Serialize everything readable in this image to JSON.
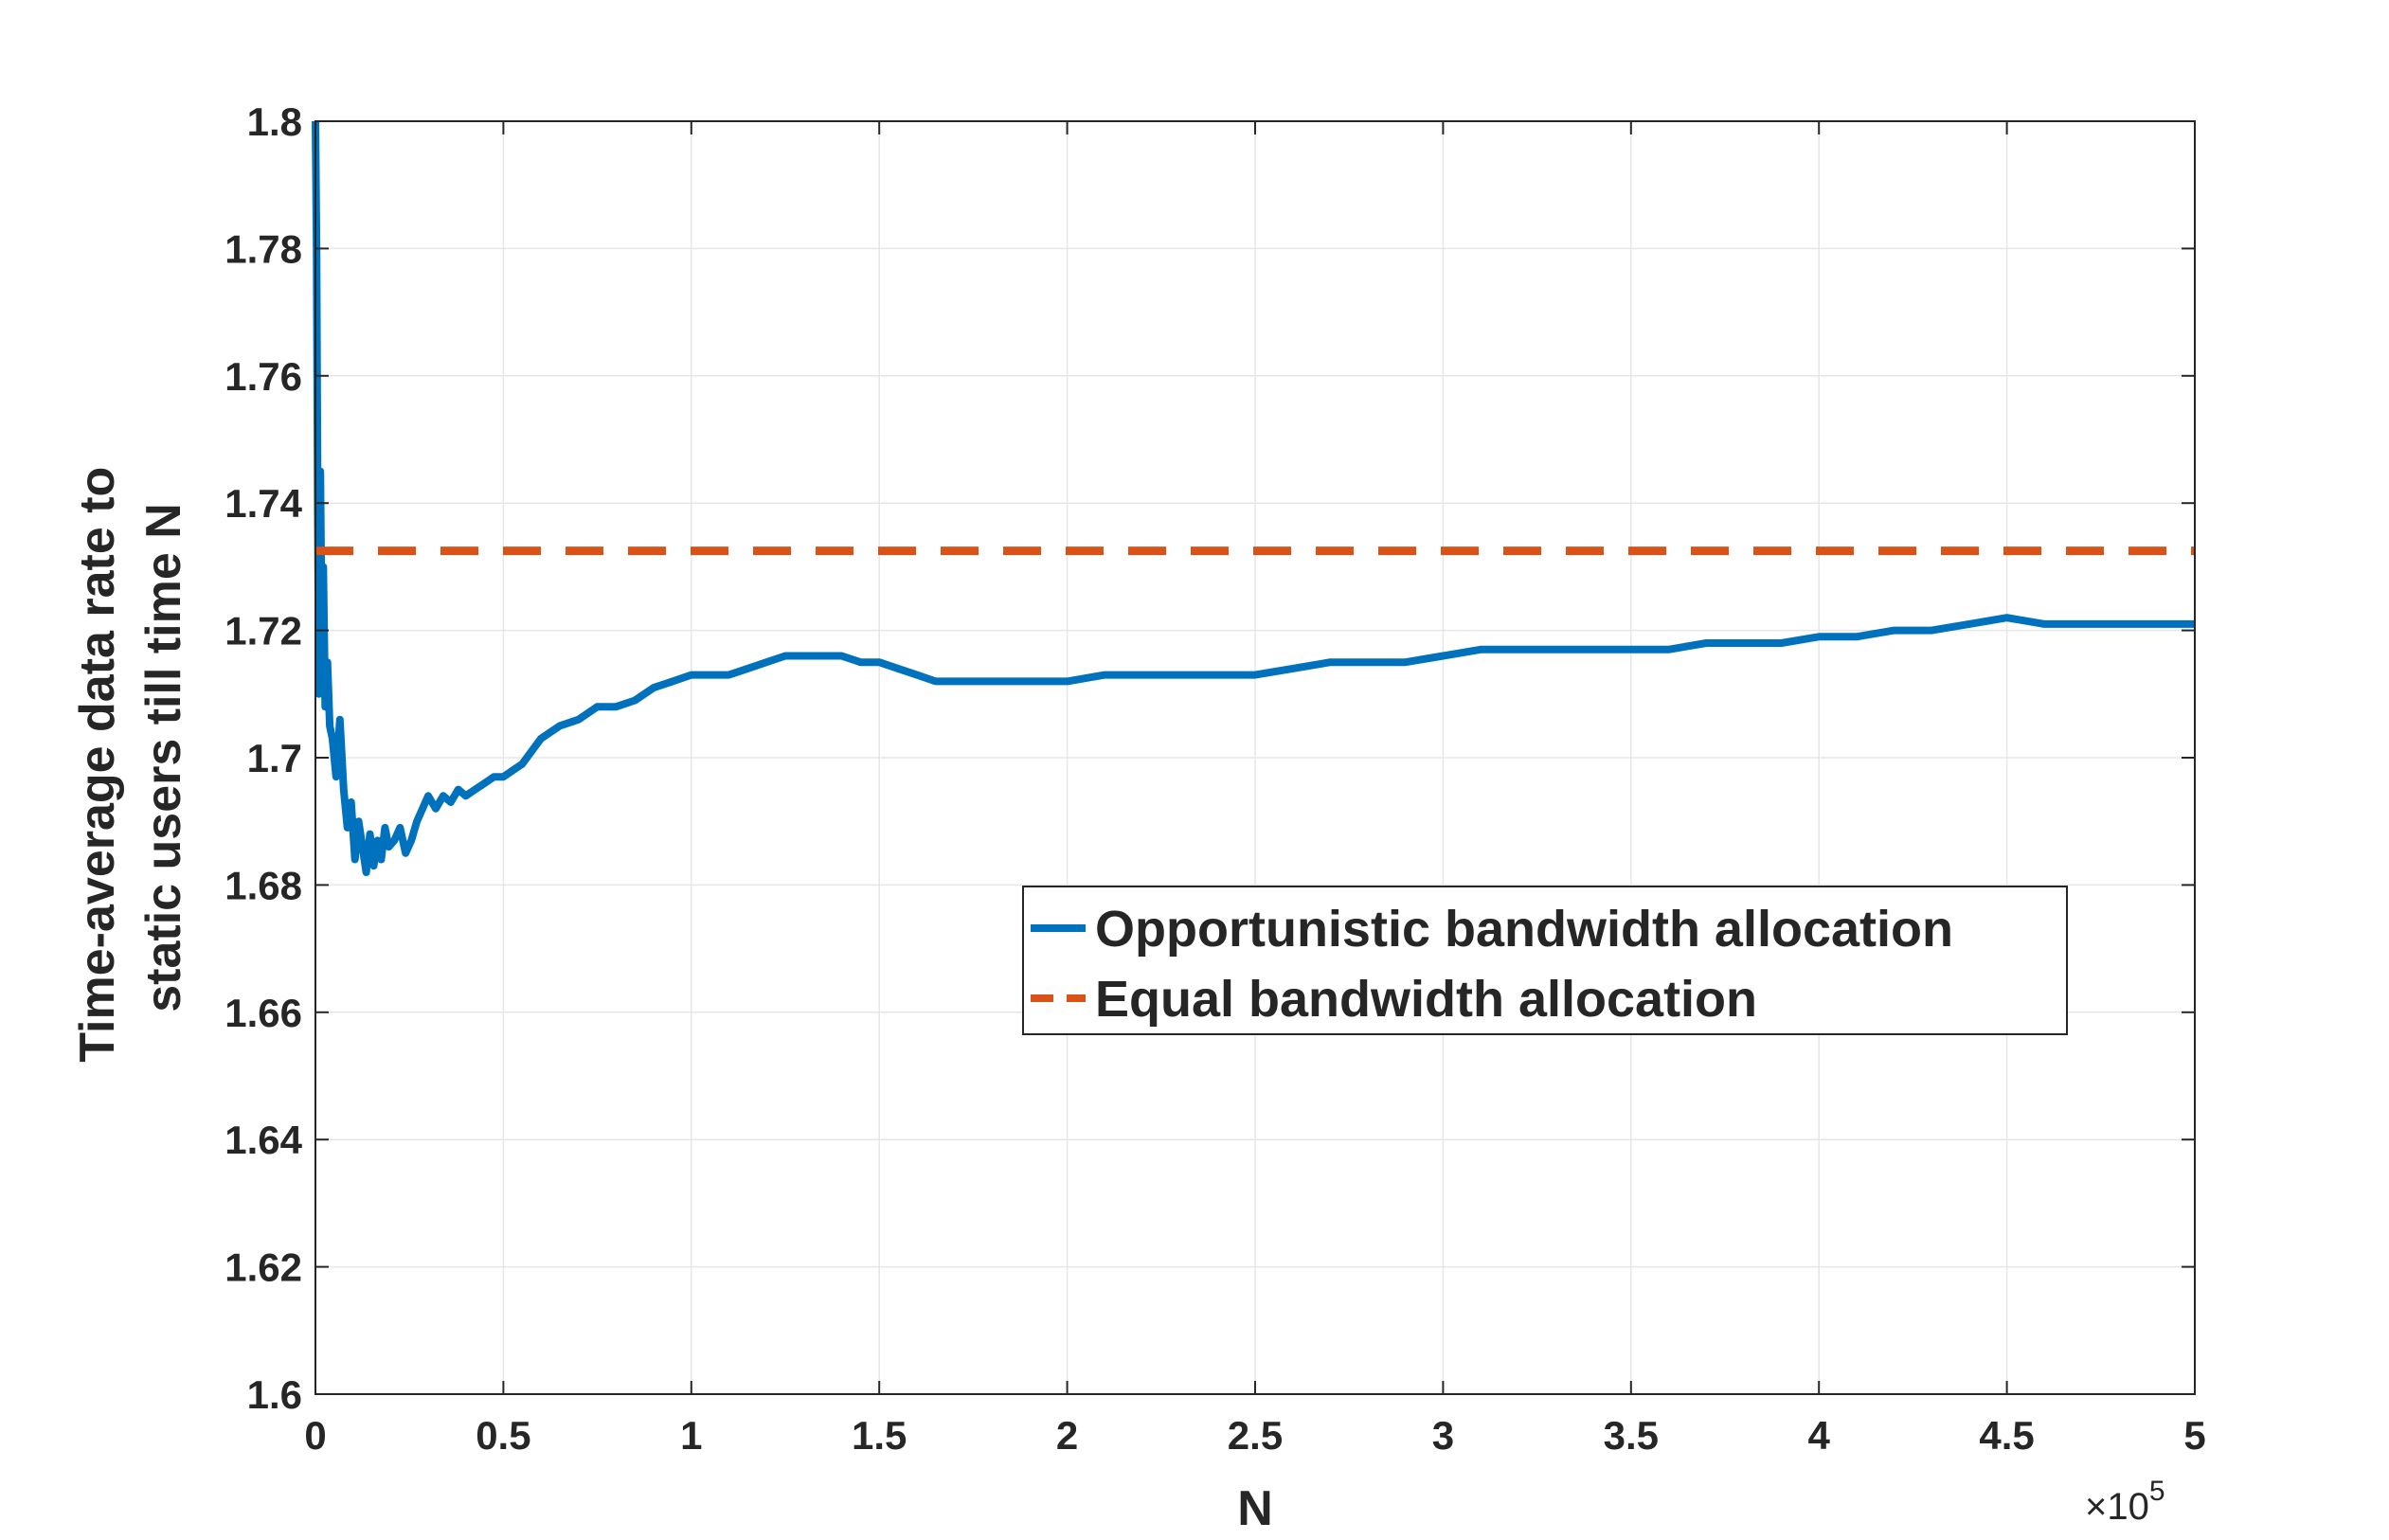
{
  "chart_data": {
    "type": "line",
    "xlabel": "N",
    "ylabel_lines": [
      "Time-average data rate to",
      "static users till time N"
    ],
    "x_exponent_label": "×10",
    "x_exponent_power": "5",
    "x_scale": 100000,
    "xlim": [
      0,
      500000
    ],
    "ylim": [
      1.6,
      1.8
    ],
    "x_ticks": [
      0,
      50000,
      100000,
      150000,
      200000,
      250000,
      300000,
      350000,
      400000,
      450000,
      500000
    ],
    "x_tick_labels": [
      "0",
      "0.5",
      "1",
      "1.5",
      "2",
      "2.5",
      "3",
      "3.5",
      "4",
      "4.5",
      "5"
    ],
    "y_ticks": [
      1.6,
      1.62,
      1.64,
      1.66,
      1.68,
      1.7,
      1.72,
      1.74,
      1.76,
      1.78,
      1.8
    ],
    "y_tick_labels": [
      "1.6",
      "1.62",
      "1.64",
      "1.66",
      "1.68",
      "1.7",
      "1.72",
      "1.74",
      "1.76",
      "1.78",
      "1.8"
    ],
    "grid": true,
    "legend_placement": "center-right",
    "series": [
      {
        "name": "Opportunistic bandwidth allocation",
        "color": "#0072BD",
        "style": "solid",
        "x": [
          0,
          300,
          600,
          900,
          1300,
          1700,
          2100,
          2600,
          3200,
          3800,
          4500,
          5500,
          6500,
          7500,
          8500,
          9500,
          10500,
          11500,
          12500,
          13500,
          14500,
          15500,
          16500,
          17500,
          18500,
          19500,
          21000,
          22500,
          24000,
          25500,
          27000,
          28500,
          30000,
          32000,
          34000,
          36000,
          38000,
          40000,
          42500,
          45000,
          47500,
          50000,
          55000,
          60000,
          65000,
          70000,
          75000,
          80000,
          85000,
          90000,
          95000,
          100000,
          105000,
          110000,
          115000,
          120000,
          125000,
          130000,
          135000,
          140000,
          145000,
          150000,
          155000,
          160000,
          165000,
          170000,
          175000,
          180000,
          185000,
          190000,
          195000,
          200000,
          210000,
          220000,
          230000,
          240000,
          250000,
          260000,
          270000,
          280000,
          290000,
          300000,
          310000,
          320000,
          330000,
          340000,
          350000,
          360000,
          370000,
          380000,
          390000,
          400000,
          410000,
          420000,
          430000,
          440000,
          450000,
          460000,
          470000,
          480000,
          490000,
          500000
        ],
        "values": [
          1.8,
          1.78,
          1.74,
          1.71,
          1.745,
          1.72,
          1.73,
          1.708,
          1.715,
          1.705,
          1.703,
          1.697,
          1.706,
          1.695,
          1.689,
          1.693,
          1.684,
          1.69,
          1.686,
          1.682,
          1.688,
          1.683,
          1.687,
          1.684,
          1.689,
          1.686,
          1.687,
          1.689,
          1.685,
          1.687,
          1.69,
          1.692,
          1.694,
          1.692,
          1.694,
          1.693,
          1.695,
          1.694,
          1.695,
          1.696,
          1.697,
          1.697,
          1.699,
          1.703,
          1.705,
          1.706,
          1.708,
          1.708,
          1.709,
          1.711,
          1.712,
          1.713,
          1.713,
          1.713,
          1.714,
          1.715,
          1.716,
          1.716,
          1.716,
          1.716,
          1.715,
          1.715,
          1.714,
          1.713,
          1.712,
          1.712,
          1.712,
          1.712,
          1.712,
          1.712,
          1.712,
          1.712,
          1.713,
          1.713,
          1.713,
          1.713,
          1.713,
          1.714,
          1.715,
          1.715,
          1.715,
          1.716,
          1.717,
          1.717,
          1.717,
          1.717,
          1.717,
          1.717,
          1.718,
          1.718,
          1.718,
          1.719,
          1.719,
          1.72,
          1.72,
          1.721,
          1.722,
          1.721,
          1.721,
          1.721,
          1.721,
          1.721
        ]
      },
      {
        "name": "Equal bandwidth allocation",
        "color": "#D95319",
        "style": "dashed",
        "x": [
          0,
          500000
        ],
        "values": [
          1.7325,
          1.7325
        ]
      }
    ]
  }
}
